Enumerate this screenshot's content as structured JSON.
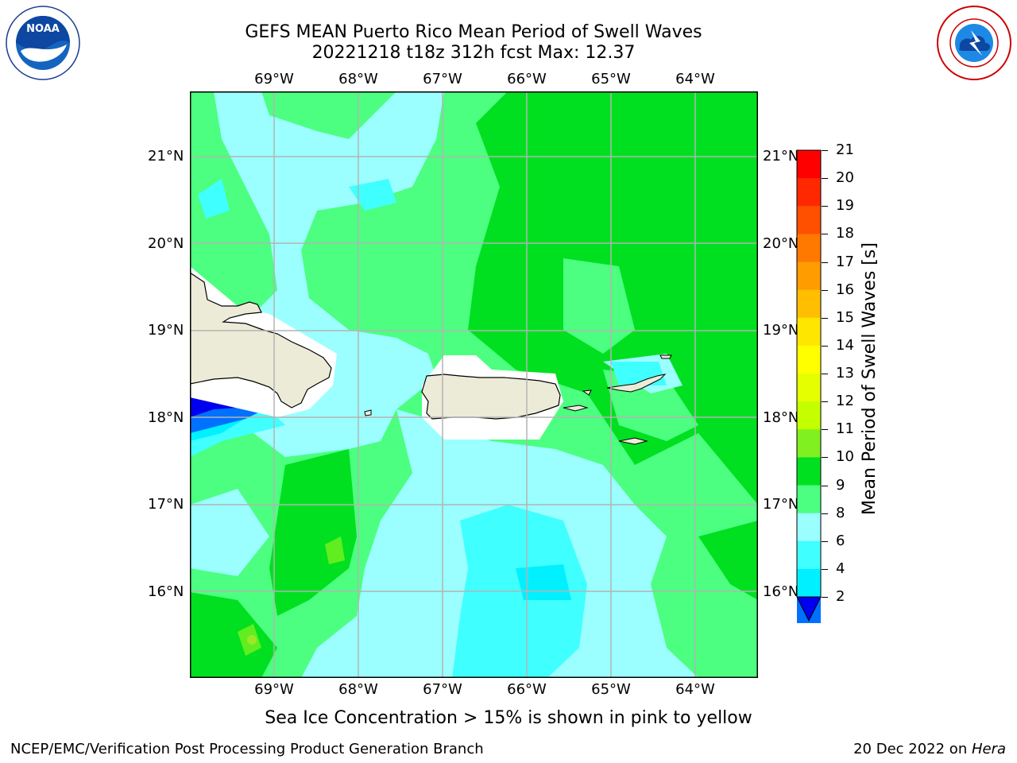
{
  "header": {
    "title_line1": "GEFS MEAN Puerto Rico Mean Period of Swell Waves",
    "title_line2": "20221218 t18z 312h fcst    Max: 12.37"
  },
  "logos": {
    "left": "NOAA",
    "right": "NATIONAL WEATHER SERVICE"
  },
  "map": {
    "lon_labels": [
      "69°W",
      "68°W",
      "67°W",
      "66°W",
      "65°W",
      "64°W"
    ],
    "lat_labels": [
      "21°N",
      "20°N",
      "19°N",
      "18°N",
      "17°N",
      "16°N"
    ],
    "colors": {
      "land": "#ecebd8",
      "level_2_4": "#0070ff",
      "level_4_6": "#00f0ff",
      "level_6_8": "#40ffff",
      "level_8_9": "#9bffff",
      "level_9_10": "#4cff80",
      "level_10_11": "#00e020",
      "level_11_12": "#60ee20",
      "level_12_13": "#9ee62a",
      "below_2": "#0000ee"
    }
  },
  "colorbar": {
    "label": "Mean Period of Swell Waves [s]",
    "ticks": [
      "21",
      "20",
      "19",
      "18",
      "17",
      "16",
      "15",
      "14",
      "13",
      "12",
      "11",
      "10",
      "9",
      "8",
      "6",
      "4",
      "2"
    ],
    "colors": [
      "#ff0000",
      "#ff2800",
      "#ff5000",
      "#ff7800",
      "#ff9c00",
      "#ffbf00",
      "#ffe600",
      "#ffff00",
      "#e6ff00",
      "#c4ff00",
      "#80f020",
      "#00e020",
      "#4cff80",
      "#9bffff",
      "#40ffff",
      "#00f0ff",
      "#0070ff"
    ],
    "extend_color": "#0000ee"
  },
  "footer": {
    "subtitle": "Sea Ice Concentration > 15% is shown in pink to yellow",
    "left": "NCEP/EMC/Verification Post Processing Product Generation Branch",
    "right_date": "20 Dec 2022 on ",
    "right_host": "Hera"
  }
}
